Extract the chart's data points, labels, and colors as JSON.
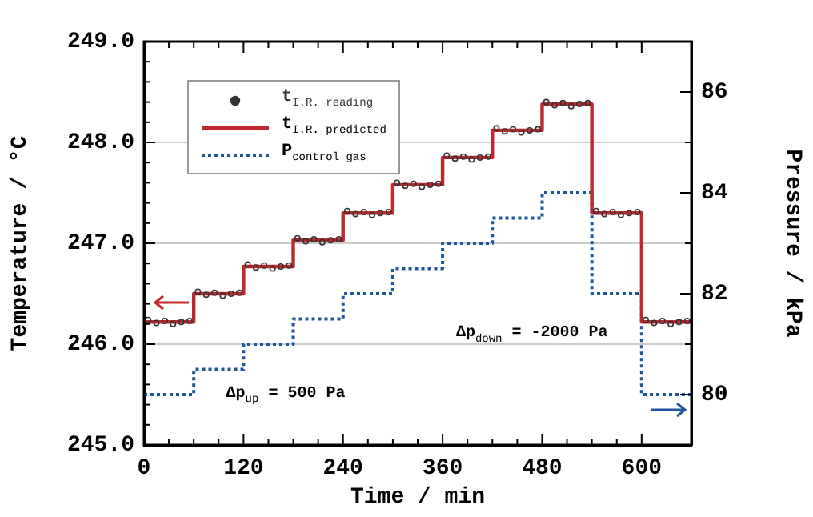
{
  "chart_data": {
    "type": "line",
    "xlabel": "Time / min",
    "ylabel": "Temperature / °C",
    "y2label": "Pressure / kPa",
    "xlim": [
      0,
      660
    ],
    "xticks": [
      0,
      120,
      240,
      360,
      480,
      600
    ],
    "ylim": [
      245,
      249
    ],
    "yticks": [
      {
        "value": 245,
        "label": "245.0"
      },
      {
        "value": 246,
        "label": "246.0"
      },
      {
        "value": 247,
        "label": "247.0"
      },
      {
        "value": 248,
        "label": "248.0"
      },
      {
        "value": 249,
        "label": "249.0"
      }
    ],
    "y2lim": [
      79,
      87
    ],
    "y2ticks": [
      80,
      82,
      84,
      86
    ],
    "grid": "y",
    "legend": "top left",
    "annotations": [
      "Δp$_{up}$ = 500 Pa",
      "Δp$_{down}$ = -2000 Pa"
    ],
    "series": [
      {
        "name": "t$_{I.R. reading}$",
        "type": "scatter",
        "marker": "circle",
        "color": "#333333",
        "x": [
          5,
          15,
          25,
          35,
          45,
          55,
          65,
          75,
          85,
          95,
          105,
          115,
          125,
          135,
          145,
          155,
          165,
          175,
          185,
          195,
          205,
          215,
          225,
          235,
          245,
          255,
          265,
          275,
          285,
          295,
          305,
          315,
          325,
          335,
          345,
          355,
          365,
          375,
          385,
          395,
          405,
          415,
          425,
          435,
          445,
          455,
          465,
          475,
          485,
          495,
          505,
          515,
          525,
          535,
          545,
          555,
          565,
          575,
          585,
          595,
          605,
          615,
          625,
          635,
          645,
          655
        ],
        "values": [
          246.24,
          246.21,
          246.23,
          246.2,
          246.22,
          246.23,
          246.52,
          246.49,
          246.51,
          246.48,
          246.5,
          246.51,
          246.79,
          246.76,
          246.78,
          246.75,
          246.77,
          246.78,
          247.05,
          247.02,
          247.04,
          247.01,
          247.03,
          247.04,
          247.32,
          247.29,
          247.31,
          247.28,
          247.3,
          247.31,
          247.6,
          247.57,
          247.59,
          247.56,
          247.58,
          247.59,
          247.87,
          247.84,
          247.86,
          247.83,
          247.85,
          247.86,
          248.14,
          248.11,
          248.13,
          248.1,
          248.12,
          248.13,
          248.4,
          248.37,
          248.39,
          248.36,
          248.38,
          248.39,
          247.32,
          247.29,
          247.31,
          247.28,
          247.3,
          247.31,
          246.24,
          246.21,
          246.23,
          246.2,
          246.22,
          246.23
        ]
      },
      {
        "name": "t$_{I.R. predicted}$",
        "type": "step",
        "line_style": "solid",
        "color": "#c0282d",
        "x": [
          0,
          60,
          120,
          180,
          240,
          300,
          360,
          420,
          480,
          540,
          600,
          660
        ],
        "values": [
          246.22,
          246.5,
          246.77,
          247.03,
          247.3,
          247.58,
          247.85,
          248.12,
          248.38,
          247.3,
          246.22,
          246.22
        ]
      },
      {
        "name": "P$_{control gas}$",
        "type": "step",
        "line_style": "dotted",
        "axis": "y2",
        "color": "#1f56a0",
        "x": [
          0,
          60,
          120,
          180,
          240,
          300,
          360,
          420,
          480,
          540,
          600,
          660
        ],
        "values": [
          80,
          80.5,
          81,
          81.5,
          82,
          82.5,
          83,
          83.5,
          84,
          82,
          80,
          80
        ]
      }
    ]
  }
}
